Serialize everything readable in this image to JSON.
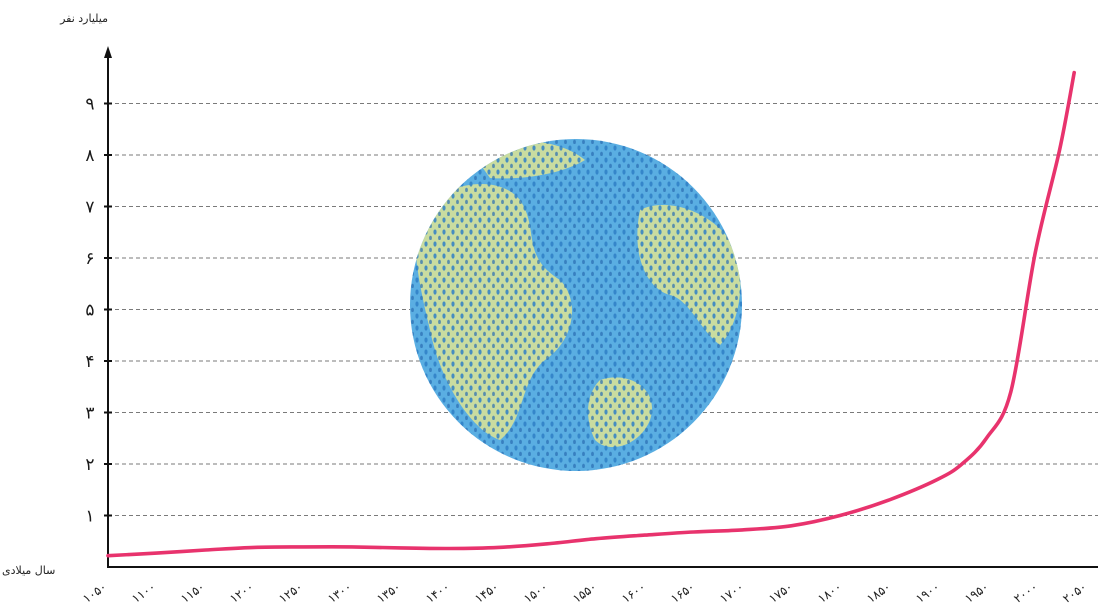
{
  "chart_data": {
    "type": "line",
    "title": "",
    "xlabel": "سال میلادی",
    "ylabel": "میلیارد نفر",
    "y_ticks": [
      "۱",
      "۲",
      "۳",
      "۴",
      "۵",
      "۶",
      "۷",
      "۸",
      "۹"
    ],
    "x_ticks": [
      "۱۰۵۰",
      "۱۱۰۰",
      "۱۱۵۰",
      "۱۲۰۰",
      "۱۲۵۰",
      "۱۳۰۰",
      "۱۳۵۰",
      "۱۴۰۰",
      "۱۴۵۰",
      "۱۵۰۰",
      "۱۵۵۰",
      "۱۶۰۰",
      "۱۶۵۰",
      "۱۷۰۰",
      "۱۷۵۰",
      "۱۸۰۰",
      "۱۸۵۰",
      "۱۹۰۰",
      "۱۹۵۰",
      "۲۰۰۰",
      "۲۰۵۰"
    ],
    "xlim": [
      1050,
      2050
    ],
    "ylim": [
      0,
      10
    ],
    "grid": true,
    "series": [
      {
        "color": "#e8336d",
        "x": [
          1050,
          1100,
          1150,
          1200,
          1250,
          1300,
          1350,
          1400,
          1450,
          1500,
          1550,
          1600,
          1650,
          1700,
          1750,
          1800,
          1850,
          1900,
          1925,
          1950,
          1975,
          2000,
          2025,
          2040
        ],
        "y": [
          0.22,
          0.27,
          0.33,
          0.38,
          0.39,
          0.39,
          0.37,
          0.36,
          0.38,
          0.45,
          0.55,
          0.62,
          0.68,
          0.72,
          0.8,
          1.0,
          1.3,
          1.7,
          2.0,
          2.5,
          3.4,
          6.1,
          8.1,
          9.6
        ]
      }
    ]
  },
  "decorations": {
    "globe_icon": "globe-of-people",
    "globe_colors": {
      "ocean": "#4fa3dc",
      "land": "#c9dca0",
      "dots": "#2f7fc6"
    }
  }
}
